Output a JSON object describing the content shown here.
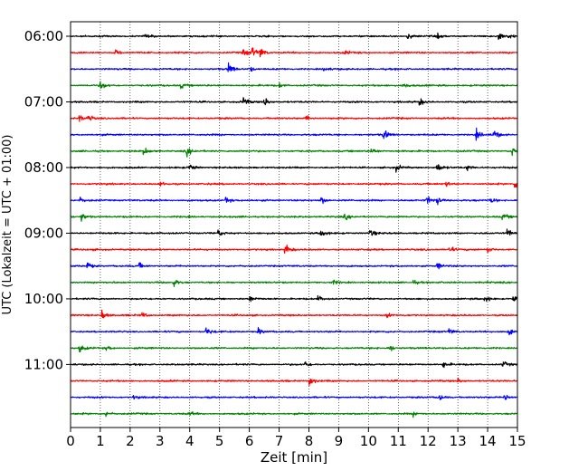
{
  "chart_data": {
    "type": "line",
    "subtype": "helicorder",
    "xlabel": "Zeit  [min]",
    "ylabel": "UTC (Lokalzeit = UTC + 01:00)",
    "xlim": [
      0,
      15
    ],
    "x_ticks": [
      0,
      1,
      2,
      3,
      4,
      5,
      6,
      7,
      8,
      9,
      10,
      11,
      12,
      13,
      14,
      15
    ],
    "y_tick_labels": [
      "06:00",
      "07:00",
      "08:00",
      "09:00",
      "10:00",
      "11:00"
    ],
    "rows_per_hour": 4,
    "row_minutes": 15,
    "start_time": "06:00",
    "row_count": 24,
    "colors": [
      "#000000",
      "#ff0000",
      "#0000ff",
      "#008000"
    ],
    "grid": "x-dotted",
    "series": [
      {
        "row": 0,
        "events": [
          {
            "t": 2.5,
            "a": 0.25
          },
          {
            "t": 11.3,
            "a": 0.45
          },
          {
            "t": 12.3,
            "a": 0.3
          },
          {
            "t": 14.35,
            "a": 0.65
          },
          {
            "t": 14.7,
            "a": 0.35
          }
        ]
      },
      {
        "row": 1,
        "events": [
          {
            "t": 1.5,
            "a": 0.35
          },
          {
            "t": 5.8,
            "a": 0.55
          },
          {
            "t": 6.1,
            "a": 0.7
          },
          {
            "t": 6.35,
            "a": 0.65
          },
          {
            "t": 9.2,
            "a": 0.3
          }
        ]
      },
      {
        "row": 2,
        "events": [
          {
            "t": 5.3,
            "a": 0.8
          },
          {
            "t": 6.0,
            "a": 0.35
          },
          {
            "t": 8.5,
            "a": 0.3
          }
        ]
      },
      {
        "row": 3,
        "events": [
          {
            "t": 1.0,
            "a": 0.6
          },
          {
            "t": 3.7,
            "a": 0.4
          },
          {
            "t": 7.0,
            "a": 0.3
          },
          {
            "t": 11.15,
            "a": 0.5
          }
        ]
      },
      {
        "row": 4,
        "events": [
          {
            "t": 5.8,
            "a": 0.55
          },
          {
            "t": 6.5,
            "a": 0.6
          },
          {
            "t": 11.7,
            "a": 0.5
          }
        ]
      },
      {
        "row": 5,
        "events": [
          {
            "t": 0.3,
            "a": 0.45
          },
          {
            "t": 0.6,
            "a": 0.5
          },
          {
            "t": 7.9,
            "a": 0.4
          }
        ]
      },
      {
        "row": 6,
        "events": [
          {
            "t": 10.5,
            "a": 0.8
          },
          {
            "t": 13.6,
            "a": 0.6
          },
          {
            "t": 14.2,
            "a": 0.7
          }
        ]
      },
      {
        "row": 7,
        "events": [
          {
            "t": 2.45,
            "a": 0.55
          },
          {
            "t": 3.9,
            "a": 0.55
          },
          {
            "t": 10.1,
            "a": 0.45
          },
          {
            "t": 14.8,
            "a": 0.6
          }
        ]
      },
      {
        "row": 8,
        "events": [
          {
            "t": 4.0,
            "a": 0.5
          },
          {
            "t": 10.9,
            "a": 0.5
          },
          {
            "t": 12.3,
            "a": 0.65
          },
          {
            "t": 13.3,
            "a": 0.45
          }
        ]
      },
      {
        "row": 9,
        "events": [
          {
            "t": 3.0,
            "a": 0.3
          },
          {
            "t": 12.6,
            "a": 0.35
          },
          {
            "t": 14.9,
            "a": 0.55
          }
        ]
      },
      {
        "row": 10,
        "events": [
          {
            "t": 0.3,
            "a": 0.35
          },
          {
            "t": 5.2,
            "a": 0.45
          },
          {
            "t": 8.4,
            "a": 0.5
          },
          {
            "t": 11.95,
            "a": 0.6
          },
          {
            "t": 12.3,
            "a": 0.55
          },
          {
            "t": 14.1,
            "a": 0.45
          }
        ]
      },
      {
        "row": 11,
        "events": [
          {
            "t": 0.35,
            "a": 0.55
          },
          {
            "t": 9.2,
            "a": 0.35
          },
          {
            "t": 14.5,
            "a": 0.4
          }
        ]
      },
      {
        "row": 12,
        "events": [
          {
            "t": 4.95,
            "a": 0.45
          },
          {
            "t": 8.4,
            "a": 0.55
          },
          {
            "t": 10.05,
            "a": 0.5
          },
          {
            "t": 14.65,
            "a": 0.65
          }
        ]
      },
      {
        "row": 13,
        "events": [
          {
            "t": 7.2,
            "a": 0.8
          },
          {
            "t": 12.7,
            "a": 0.55
          },
          {
            "t": 14.0,
            "a": 0.35
          }
        ]
      },
      {
        "row": 14,
        "events": [
          {
            "t": 0.55,
            "a": 0.55
          },
          {
            "t": 2.3,
            "a": 0.35
          },
          {
            "t": 12.3,
            "a": 0.45
          }
        ]
      },
      {
        "row": 15,
        "events": [
          {
            "t": 3.45,
            "a": 0.5
          },
          {
            "t": 8.8,
            "a": 0.3
          },
          {
            "t": 11.5,
            "a": 0.3
          }
        ]
      },
      {
        "row": 16,
        "events": [
          {
            "t": 6.0,
            "a": 0.45
          },
          {
            "t": 8.3,
            "a": 0.35
          },
          {
            "t": 13.9,
            "a": 0.45
          },
          {
            "t": 14.85,
            "a": 0.4
          }
        ]
      },
      {
        "row": 17,
        "events": [
          {
            "t": 1.05,
            "a": 0.6
          },
          {
            "t": 2.4,
            "a": 0.35
          },
          {
            "t": 10.6,
            "a": 0.3
          }
        ]
      },
      {
        "row": 18,
        "events": [
          {
            "t": 4.55,
            "a": 0.6
          },
          {
            "t": 6.3,
            "a": 0.4
          },
          {
            "t": 12.7,
            "a": 0.4
          },
          {
            "t": 14.7,
            "a": 0.55
          }
        ]
      },
      {
        "row": 19,
        "events": [
          {
            "t": 0.3,
            "a": 0.5
          },
          {
            "t": 1.2,
            "a": 0.3
          },
          {
            "t": 10.7,
            "a": 0.5
          }
        ]
      },
      {
        "row": 20,
        "events": [
          {
            "t": 7.85,
            "a": 0.45
          },
          {
            "t": 12.5,
            "a": 0.45
          },
          {
            "t": 14.5,
            "a": 0.4
          }
        ]
      },
      {
        "row": 21,
        "events": [
          {
            "t": 8.0,
            "a": 0.8
          },
          {
            "t": 13.0,
            "a": 0.3
          }
        ]
      },
      {
        "row": 22,
        "events": [
          {
            "t": 12.35,
            "a": 0.45
          },
          {
            "t": 14.55,
            "a": 0.6
          },
          {
            "t": 2.1,
            "a": 0.25
          }
        ]
      },
      {
        "row": 23,
        "events": [
          {
            "t": 1.15,
            "a": 0.5
          },
          {
            "t": 4.0,
            "a": 0.25
          },
          {
            "t": 11.5,
            "a": 0.25
          }
        ]
      }
    ]
  }
}
